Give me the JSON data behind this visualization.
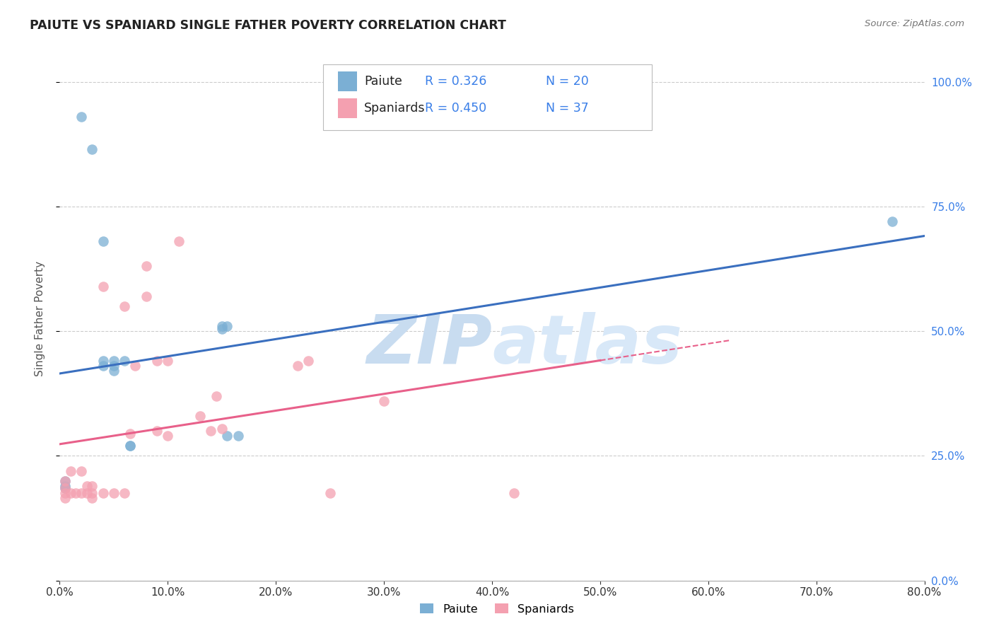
{
  "title": "PAIUTE VS SPANIARD SINGLE FATHER POVERTY CORRELATION CHART",
  "source": "Source: ZipAtlas.com",
  "ylabel_label": "Single Father Poverty",
  "legend_label1": "Paiute",
  "legend_label2": "Spaniards",
  "r1": "0.326",
  "n1": "20",
  "r2": "0.450",
  "n2": "37",
  "color_paiute": "#7BAFD4",
  "color_spaniards": "#F4A0B0",
  "color_line_paiute": "#3A6FBF",
  "color_line_spaniards": "#E8608A",
  "color_r_n": "#3A7FE8",
  "watermark_color": "#C8DCF0",
  "xlim": [
    0.0,
    0.8
  ],
  "ylim": [
    0.0,
    1.05
  ],
  "paiute_x": [
    0.005,
    0.005,
    0.005,
    0.02,
    0.03,
    0.04,
    0.04,
    0.04,
    0.05,
    0.05,
    0.05,
    0.06,
    0.065,
    0.065,
    0.15,
    0.15,
    0.155,
    0.155,
    0.165,
    0.77
  ],
  "paiute_y": [
    0.185,
    0.19,
    0.2,
    0.93,
    0.865,
    0.68,
    0.43,
    0.44,
    0.44,
    0.43,
    0.42,
    0.44,
    0.27,
    0.27,
    0.51,
    0.505,
    0.51,
    0.29,
    0.29,
    0.72
  ],
  "spaniard_x": [
    0.005,
    0.005,
    0.005,
    0.005,
    0.01,
    0.01,
    0.015,
    0.02,
    0.02,
    0.025,
    0.025,
    0.03,
    0.03,
    0.03,
    0.04,
    0.04,
    0.05,
    0.06,
    0.06,
    0.065,
    0.07,
    0.08,
    0.08,
    0.09,
    0.09,
    0.1,
    0.1,
    0.11,
    0.13,
    0.14,
    0.145,
    0.15,
    0.22,
    0.23,
    0.25,
    0.3,
    0.42
  ],
  "spaniard_y": [
    0.185,
    0.175,
    0.165,
    0.2,
    0.175,
    0.22,
    0.175,
    0.175,
    0.22,
    0.175,
    0.19,
    0.175,
    0.19,
    0.165,
    0.175,
    0.59,
    0.175,
    0.175,
    0.55,
    0.295,
    0.43,
    0.57,
    0.63,
    0.44,
    0.3,
    0.29,
    0.44,
    0.68,
    0.33,
    0.3,
    0.37,
    0.305,
    0.43,
    0.44,
    0.175,
    0.36,
    0.175
  ],
  "figsize": [
    14.06,
    8.92
  ],
  "dpi": 100
}
